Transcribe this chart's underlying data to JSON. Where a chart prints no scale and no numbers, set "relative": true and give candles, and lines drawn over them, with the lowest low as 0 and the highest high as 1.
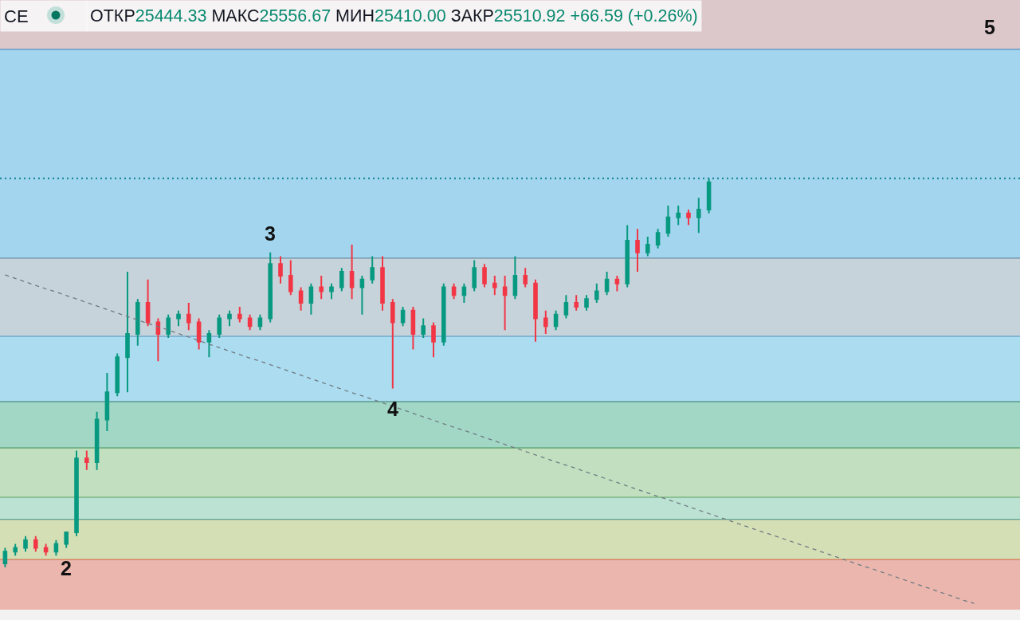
{
  "chart_data": {
    "type": "candlestick",
    "title": "CE",
    "subtitle": "ОТКР25444.33 МАКС25556.67 МИН25410.00 ЗАКР25510.92 +66.59 (+0.26%)",
    "relative": true,
    "tick_labels": false,
    "line_style": "dashed",
    "categories": [
      null,
      null,
      null,
      null,
      null,
      null,
      null,
      null,
      null,
      null,
      null,
      null,
      null,
      null,
      null,
      null,
      null,
      null,
      null,
      null,
      null,
      null,
      null,
      null,
      null,
      null,
      null,
      null,
      null,
      null,
      null,
      null,
      null,
      null,
      null,
      null,
      null,
      null,
      null,
      null,
      null,
      null,
      null,
      null,
      null,
      null,
      null,
      null,
      null,
      null,
      null,
      null,
      null,
      null,
      null,
      null,
      null,
      null,
      null,
      null,
      null,
      null,
      null,
      null,
      null,
      null,
      null,
      null,
      null,
      null,
      null,
      null,
      null,
      null,
      null,
      null,
      null,
      null,
      null,
      null,
      null,
      null,
      null,
      null,
      null,
      null,
      null,
      null,
      null,
      null,
      null,
      null,
      null,
      null,
      null,
      null,
      null,
      null,
      null,
      null
    ],
    "ohlc": [
      [
        0.01,
        0.05,
        0.0,
        0.04
      ],
      [
        0.04,
        0.06,
        0.03,
        0.05
      ],
      [
        0.05,
        0.08,
        0.04,
        0.07
      ],
      [
        0.07,
        0.08,
        0.04,
        0.05
      ],
      [
        0.05,
        0.06,
        0.03,
        0.04
      ],
      [
        0.04,
        0.07,
        0.03,
        0.06
      ],
      [
        0.06,
        0.09,
        0.05,
        0.09
      ],
      [
        0.09,
        0.3,
        0.08,
        0.28
      ],
      [
        0.28,
        0.3,
        0.25,
        0.27
      ],
      [
        0.27,
        0.4,
        0.25,
        0.38
      ],
      [
        0.38,
        0.5,
        0.35,
        0.45
      ],
      [
        0.45,
        0.55,
        0.44,
        0.54
      ],
      [
        0.54,
        0.76,
        0.45,
        0.6
      ],
      [
        0.6,
        0.69,
        0.57,
        0.68
      ],
      [
        0.68,
        0.74,
        0.62,
        0.63
      ],
      [
        0.63,
        0.64,
        0.53,
        0.6
      ],
      [
        0.6,
        0.65,
        0.59,
        0.64
      ],
      [
        0.64,
        0.66,
        0.62,
        0.65
      ],
      [
        0.65,
        0.68,
        0.61,
        0.63
      ],
      [
        0.63,
        0.64,
        0.56,
        0.58
      ],
      [
        0.58,
        0.61,
        0.54,
        0.6
      ],
      [
        0.6,
        0.65,
        0.59,
        0.64
      ],
      [
        0.64,
        0.66,
        0.62,
        0.65
      ],
      [
        0.65,
        0.67,
        0.63,
        0.64
      ],
      [
        0.64,
        0.65,
        0.61,
        0.62
      ],
      [
        0.62,
        0.65,
        0.61,
        0.64
      ],
      [
        0.64,
        0.81,
        0.63,
        0.78
      ],
      [
        0.78,
        0.8,
        0.73,
        0.75
      ],
      [
        0.75,
        0.79,
        0.7,
        0.71
      ],
      [
        0.71,
        0.72,
        0.66,
        0.68
      ],
      [
        0.68,
        0.73,
        0.65,
        0.72
      ],
      [
        0.72,
        0.75,
        0.69,
        0.71
      ],
      [
        0.71,
        0.73,
        0.69,
        0.72
      ],
      [
        0.72,
        0.77,
        0.71,
        0.76
      ],
      [
        0.76,
        0.83,
        0.69,
        0.72
      ],
      [
        0.72,
        0.75,
        0.65,
        0.74
      ],
      [
        0.74,
        0.8,
        0.73,
        0.77
      ],
      [
        0.77,
        0.8,
        0.66,
        0.68
      ],
      [
        0.68,
        0.69,
        0.46,
        0.63
      ],
      [
        0.63,
        0.67,
        0.62,
        0.66
      ],
      [
        0.66,
        0.67,
        0.56,
        0.6
      ],
      [
        0.6,
        0.64,
        0.59,
        0.62
      ],
      [
        0.62,
        0.63,
        0.54,
        0.58
      ],
      [
        0.58,
        0.73,
        0.57,
        0.72
      ],
      [
        0.72,
        0.73,
        0.69,
        0.7
      ],
      [
        0.7,
        0.73,
        0.68,
        0.72
      ],
      [
        0.72,
        0.79,
        0.71,
        0.77
      ],
      [
        0.77,
        0.78,
        0.72,
        0.73
      ],
      [
        0.73,
        0.75,
        0.7,
        0.72
      ],
      [
        0.72,
        0.75,
        0.61,
        0.7
      ],
      [
        0.7,
        0.8,
        0.69,
        0.75
      ],
      [
        0.75,
        0.77,
        0.72,
        0.73
      ],
      [
        0.73,
        0.74,
        0.58,
        0.64
      ],
      [
        0.64,
        0.66,
        0.6,
        0.62
      ],
      [
        0.62,
        0.66,
        0.61,
        0.65
      ],
      [
        0.65,
        0.7,
        0.64,
        0.68
      ],
      [
        0.68,
        0.7,
        0.66,
        0.67
      ],
      [
        0.67,
        0.7,
        0.66,
        0.69
      ],
      [
        0.69,
        0.73,
        0.68,
        0.71
      ],
      [
        0.71,
        0.76,
        0.7,
        0.74
      ],
      [
        0.74,
        0.75,
        0.71,
        0.73
      ],
      [
        0.73,
        0.88,
        0.72,
        0.84
      ],
      [
        0.84,
        0.87,
        0.76,
        0.81
      ],
      [
        0.81,
        0.85,
        0.8,
        0.83
      ],
      [
        0.83,
        0.87,
        0.82,
        0.86
      ],
      [
        0.86,
        0.93,
        0.85,
        0.9
      ],
      [
        0.9,
        0.93,
        0.88,
        0.91
      ],
      [
        0.91,
        0.92,
        0.88,
        0.9
      ],
      [
        0.9,
        0.95,
        0.86,
        0.92
      ],
      [
        0.92,
        1.0,
        0.91,
        0.99
      ],
      null,
      null,
      null,
      null,
      null,
      null,
      null,
      null,
      null,
      null,
      null,
      null,
      null,
      null,
      null,
      null,
      null,
      null,
      null,
      null,
      null,
      null,
      null,
      null,
      null,
      null,
      null,
      null,
      null,
      null
    ],
    "colors": [
      "#089981",
      "#089981",
      "#089981",
      "#f23645",
      "#f23645",
      "#089981",
      "#089981",
      "#089981",
      "#f23645",
      "#089981",
      "#089981",
      "#089981",
      "#089981",
      "#089981",
      "#f23645",
      "#f23645",
      "#089981",
      "#089981",
      "#f23645",
      "#f23645",
      "#089981",
      "#089981",
      "#089981",
      "#f23645",
      "#f23645",
      "#089981",
      "#089981",
      "#f23645",
      "#f23645",
      "#f23645",
      "#089981",
      "#f23645",
      "#089981",
      "#089981",
      "#f23645",
      "#089981",
      "#089981",
      "#f23645",
      "#f23645",
      "#089981",
      "#f23645",
      "#089981",
      "#f23645",
      "#089981",
      "#f23645",
      "#089981",
      "#089981",
      "#f23645",
      "#f23645",
      "#f23645",
      "#089981",
      "#f23645",
      "#f23645",
      "#f23645",
      "#089981",
      "#089981",
      "#f23645",
      "#089981",
      "#089981",
      "#089981",
      "#f23645",
      "#089981",
      "#f23645",
      "#089981",
      "#089981",
      "#089981",
      "#089981",
      "#f23645",
      "#089981",
      "#089981",
      null,
      null,
      null,
      null,
      null,
      null,
      null,
      null,
      null,
      null,
      null,
      null,
      null,
      null,
      null,
      null,
      null,
      null,
      null,
      null,
      null,
      null,
      null,
      null,
      null,
      null,
      null,
      null,
      null,
      null
    ],
    "value_labels": [
      null,
      null,
      null,
      null,
      null,
      null,
      "2",
      null,
      null,
      null,
      null,
      null,
      null,
      null,
      null,
      null,
      null,
      null,
      null,
      null,
      null,
      null,
      null,
      null,
      null,
      null,
      "3",
      null,
      null,
      null,
      null,
      null,
      null,
      null,
      null,
      null,
      null,
      null,
      "4",
      null,
      null,
      null,
      null,
      null,
      null,
      null,
      null,
      null,
      null,
      null,
      null,
      null,
      null,
      null,
      null,
      null,
      null,
      null,
      null,
      null,
      null,
      null,
      null,
      null,
      null,
      null,
      null,
      null,
      null,
      null,
      null,
      null,
      null,
      null,
      null,
      null,
      null,
      null,
      null,
      null,
      null,
      null,
      null,
      null,
      null,
      null,
      null,
      null,
      null,
      null,
      null,
      null,
      null,
      null,
      null,
      null,
      null,
      null,
      null,
      null
    ],
    "series": [
      {
        "type": "line",
        "color": "#6f7b82",
        "values": [
          0.752,
          0.743,
          0.734,
          0.725,
          0.716,
          0.708,
          0.699,
          0.69,
          0.681,
          0.672,
          0.663,
          0.654,
          0.645,
          0.636,
          0.627,
          0.619,
          0.61,
          0.601,
          0.592,
          0.583,
          0.574,
          0.565,
          0.556,
          0.547,
          0.538,
          0.53,
          0.521,
          0.512,
          0.503,
          0.494,
          0.485,
          0.476,
          0.467,
          0.458,
          0.449,
          0.441,
          0.432,
          0.423,
          0.414,
          0.405,
          0.396,
          0.387,
          0.378,
          0.369,
          0.36,
          0.352,
          0.343,
          0.334,
          0.325,
          0.316,
          0.307,
          0.298,
          0.289,
          0.28,
          0.271,
          0.263,
          0.254,
          0.245,
          0.236,
          0.227,
          0.218,
          0.209,
          0.2,
          0.191,
          0.182,
          0.174,
          0.165,
          0.156,
          0.147,
          0.138,
          0.129,
          0.12,
          0.111,
          0.102,
          0.093,
          0.085,
          0.076,
          0.067,
          0.058,
          0.049,
          0.04,
          0.031,
          0.022,
          0.013,
          0.004,
          -0.004,
          -0.013,
          -0.022,
          -0.031,
          -0.04,
          -0.049,
          -0.058,
          -0.067,
          -0.076,
          -0.085,
          -0.093,
          null,
          null,
          null,
          null
        ]
      }
    ],
    "bands": [
      {
        "axis": "y",
        "from": 1.332,
        "to": 1.459,
        "color": "#dcc7ca"
      },
      {
        "axis": "y",
        "from": 0.795,
        "to": 1.332,
        "color": "#a3d5ee"
      },
      {
        "axis": "y",
        "from": 0.594,
        "to": 0.795,
        "color": "#c6d3da"
      },
      {
        "axis": "y",
        "from": 0.426,
        "to": 0.594,
        "color": "#acdcef"
      },
      {
        "axis": "y",
        "from": 0.307,
        "to": 0.426,
        "color": "#a2d7c6"
      },
      {
        "axis": "y",
        "from": 0.18,
        "to": 0.307,
        "color": "#c2e0c0"
      },
      {
        "axis": "y",
        "from": 0.123,
        "to": 0.18,
        "color": "#bbe2d2"
      },
      {
        "axis": "y",
        "from": 0.02,
        "to": 0.123,
        "color": "#d5dfb6"
      },
      {
        "axis": "y",
        "from": -0.109,
        "to": 0.02,
        "color": "#eab6ae"
      }
    ],
    "ref_lines": [
      {
        "axis": "y",
        "value": 1.332,
        "color": "#3a7fc0"
      },
      {
        "axis": "y",
        "value": 0.795,
        "color": "#5c7d90"
      },
      {
        "axis": "y",
        "value": 0.594,
        "color": "#4f94c0"
      },
      {
        "axis": "y",
        "value": 0.426,
        "color": "#2f7f70"
      },
      {
        "axis": "y",
        "value": 0.307,
        "color": "#3f8f50"
      },
      {
        "axis": "y",
        "value": 0.18,
        "color": "#5aa060"
      },
      {
        "axis": "y",
        "value": 0.123,
        "color": "#3d8a80"
      },
      {
        "axis": "y",
        "value": 0.02,
        "color": "#d2643c"
      },
      {
        "axis": "y",
        "value": 1.0,
        "color": "#1a8a9a",
        "line_style": "dotted"
      }
    ],
    "annotations": [
      "5"
    ]
  }
}
